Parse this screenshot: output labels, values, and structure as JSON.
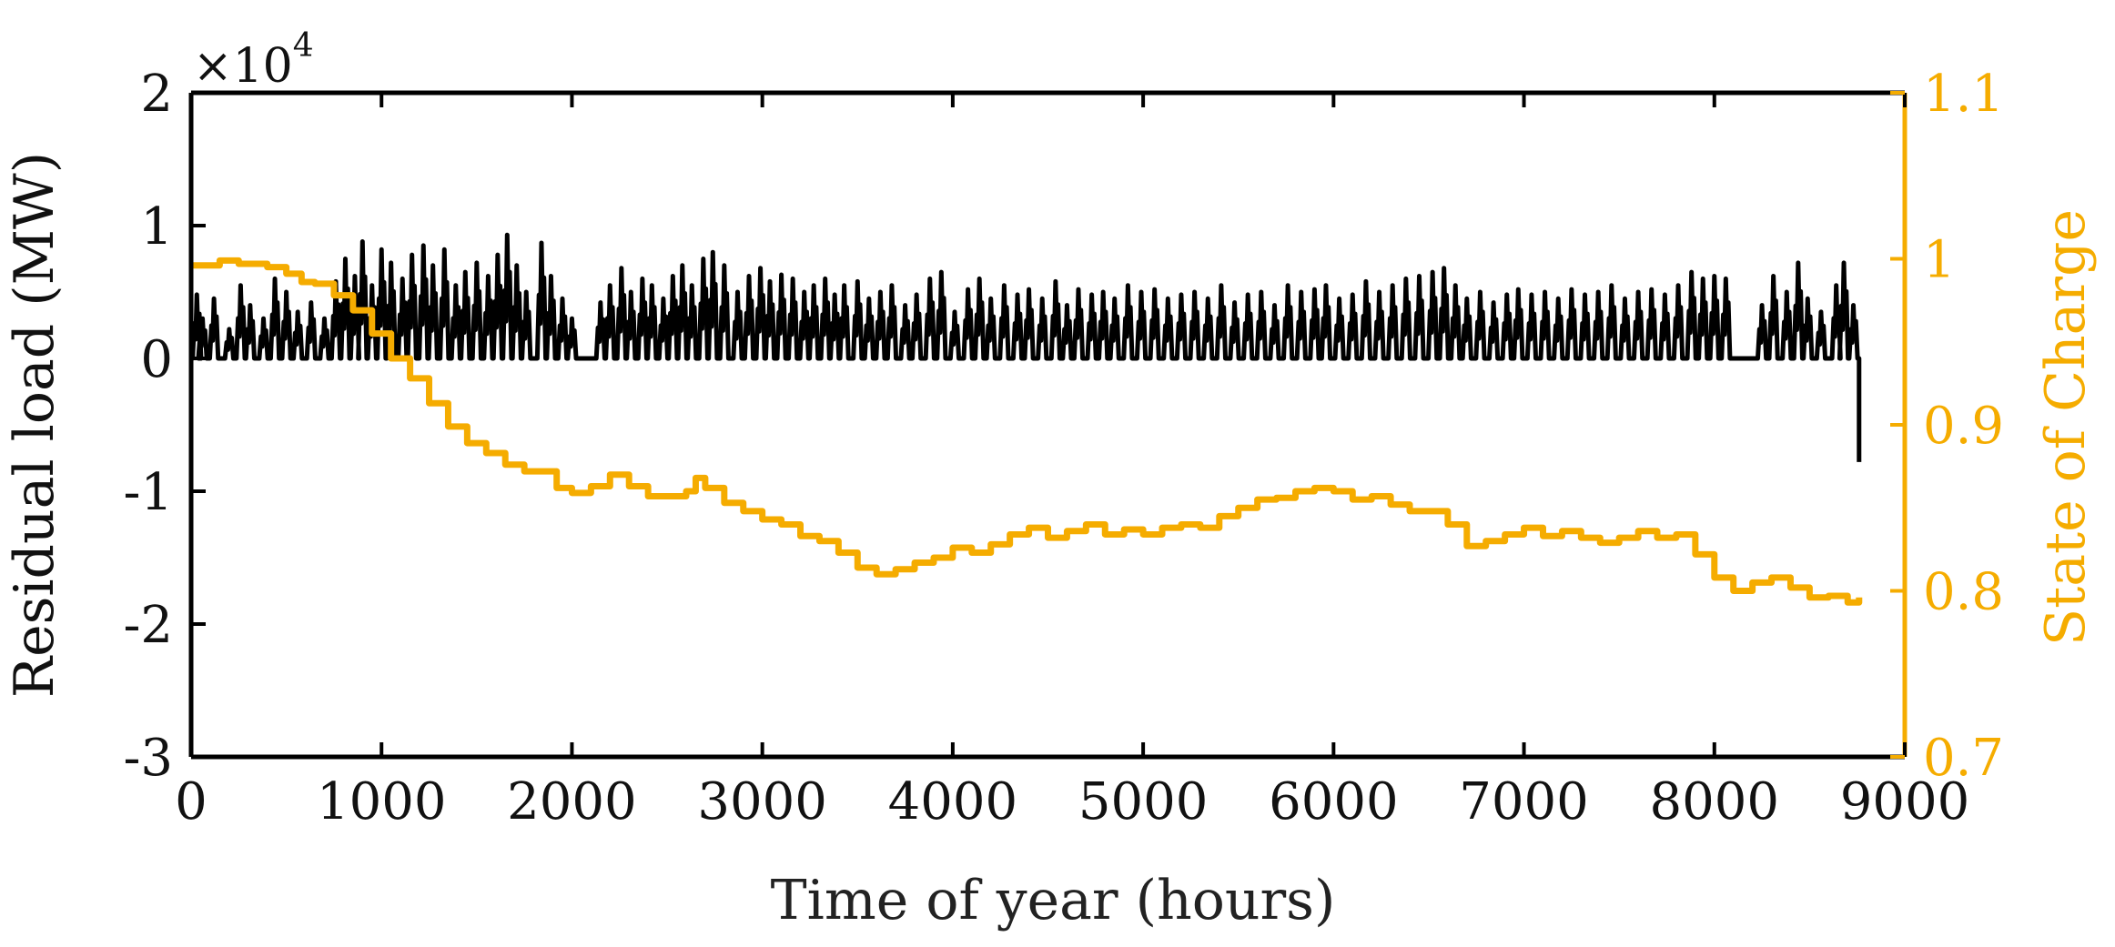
{
  "chart_data": {
    "type": "line",
    "title": "",
    "xlabel": "Time of year (hours)",
    "ylabel_left": "Residual load (MW)",
    "ylabel_right": "State of Charge",
    "left_axis_multiplier": {
      "base": "×10",
      "exponent": "4"
    },
    "xlim": [
      0,
      9000
    ],
    "ylim_left": [
      -3,
      2
    ],
    "ylim_right": [
      0.7,
      1.1
    ],
    "x_ticks": [
      "0",
      "1000",
      "2000",
      "3000",
      "4000",
      "5000",
      "6000",
      "7000",
      "8000",
      "9000"
    ],
    "y_left_ticks": [
      "2",
      "1",
      "0",
      "-1",
      "-2",
      "-3"
    ],
    "y_right_ticks": [
      "1.1",
      "1",
      "0.9",
      "0.8",
      "0.7"
    ],
    "grid": false,
    "colors": {
      "residual_load": "#000000",
      "state_of_charge": "#f5ac00",
      "axis_left": "#000000",
      "axis_right": "#f5ac00"
    },
    "series": [
      {
        "name": "Residual load",
        "axis": "left",
        "units": "x10^4 MW",
        "baseline": 0,
        "x_end": 8760,
        "final_value": -0.78,
        "peaks": [
          [
            30,
            0.48
          ],
          [
            60,
            0.3
          ],
          [
            120,
            0.45
          ],
          [
            200,
            0.22
          ],
          [
            260,
            0.55
          ],
          [
            310,
            0.4
          ],
          [
            380,
            0.3
          ],
          [
            440,
            0.6
          ],
          [
            500,
            0.5
          ],
          [
            560,
            0.35
          ],
          [
            630,
            0.42
          ],
          [
            700,
            0.3
          ],
          [
            760,
            0.58
          ],
          [
            810,
            0.75
          ],
          [
            860,
            0.62
          ],
          [
            900,
            0.88
          ],
          [
            950,
            0.55
          ],
          [
            1000,
            0.82
          ],
          [
            1050,
            0.72
          ],
          [
            1110,
            0.6
          ],
          [
            1160,
            0.78
          ],
          [
            1220,
            0.85
          ],
          [
            1270,
            0.7
          ],
          [
            1330,
            0.82
          ],
          [
            1390,
            0.55
          ],
          [
            1440,
            0.65
          ],
          [
            1500,
            0.72
          ],
          [
            1560,
            0.62
          ],
          [
            1610,
            0.78
          ],
          [
            1660,
            0.93
          ],
          [
            1710,
            0.7
          ],
          [
            1760,
            0.5
          ],
          [
            1840,
            0.87
          ],
          [
            1890,
            0.62
          ],
          [
            1950,
            0.45
          ],
          [
            2000,
            0.3
          ],
          [
            2150,
            0.42
          ],
          [
            2200,
            0.55
          ],
          [
            2260,
            0.68
          ],
          [
            2310,
            0.5
          ],
          [
            2370,
            0.6
          ],
          [
            2420,
            0.55
          ],
          [
            2480,
            0.45
          ],
          [
            2530,
            0.62
          ],
          [
            2580,
            0.7
          ],
          [
            2630,
            0.55
          ],
          [
            2690,
            0.75
          ],
          [
            2740,
            0.8
          ],
          [
            2800,
            0.7
          ],
          [
            2870,
            0.5
          ],
          [
            2930,
            0.62
          ],
          [
            2990,
            0.68
          ],
          [
            3040,
            0.58
          ],
          [
            3100,
            0.63
          ],
          [
            3160,
            0.6
          ],
          [
            3220,
            0.5
          ],
          [
            3270,
            0.55
          ],
          [
            3330,
            0.6
          ],
          [
            3380,
            0.48
          ],
          [
            3430,
            0.55
          ],
          [
            3500,
            0.58
          ],
          [
            3560,
            0.45
          ],
          [
            3620,
            0.5
          ],
          [
            3680,
            0.55
          ],
          [
            3750,
            0.4
          ],
          [
            3810,
            0.48
          ],
          [
            3880,
            0.6
          ],
          [
            3940,
            0.65
          ],
          [
            4010,
            0.35
          ],
          [
            4080,
            0.52
          ],
          [
            4140,
            0.6
          ],
          [
            4200,
            0.45
          ],
          [
            4270,
            0.55
          ],
          [
            4340,
            0.48
          ],
          [
            4400,
            0.52
          ],
          [
            4470,
            0.45
          ],
          [
            4540,
            0.58
          ],
          [
            4600,
            0.4
          ],
          [
            4660,
            0.52
          ],
          [
            4730,
            0.48
          ],
          [
            4790,
            0.5
          ],
          [
            4850,
            0.45
          ],
          [
            4920,
            0.55
          ],
          [
            4990,
            0.5
          ],
          [
            5060,
            0.52
          ],
          [
            5130,
            0.45
          ],
          [
            5200,
            0.48
          ],
          [
            5270,
            0.5
          ],
          [
            5340,
            0.45
          ],
          [
            5410,
            0.55
          ],
          [
            5480,
            0.42
          ],
          [
            5550,
            0.48
          ],
          [
            5620,
            0.5
          ],
          [
            5690,
            0.4
          ],
          [
            5760,
            0.55
          ],
          [
            5830,
            0.5
          ],
          [
            5900,
            0.52
          ],
          [
            5960,
            0.55
          ],
          [
            6030,
            0.45
          ],
          [
            6100,
            0.48
          ],
          [
            6170,
            0.58
          ],
          [
            6240,
            0.5
          ],
          [
            6310,
            0.55
          ],
          [
            6380,
            0.6
          ],
          [
            6450,
            0.62
          ],
          [
            6520,
            0.65
          ],
          [
            6580,
            0.68
          ],
          [
            6640,
            0.55
          ],
          [
            6700,
            0.45
          ],
          [
            6770,
            0.5
          ],
          [
            6840,
            0.42
          ],
          [
            6910,
            0.48
          ],
          [
            6970,
            0.52
          ],
          [
            7040,
            0.48
          ],
          [
            7110,
            0.5
          ],
          [
            7180,
            0.45
          ],
          [
            7250,
            0.52
          ],
          [
            7320,
            0.48
          ],
          [
            7390,
            0.5
          ],
          [
            7460,
            0.55
          ],
          [
            7530,
            0.45
          ],
          [
            7600,
            0.5
          ],
          [
            7670,
            0.52
          ],
          [
            7740,
            0.48
          ],
          [
            7810,
            0.55
          ],
          [
            7880,
            0.65
          ],
          [
            7940,
            0.6
          ],
          [
            8000,
            0.62
          ],
          [
            8060,
            0.6
          ],
          [
            8250,
            0.4
          ],
          [
            8310,
            0.62
          ],
          [
            8380,
            0.5
          ],
          [
            8440,
            0.72
          ],
          [
            8490,
            0.45
          ],
          [
            8560,
            0.35
          ],
          [
            8640,
            0.55
          ],
          [
            8680,
            0.72
          ],
          [
            8730,
            0.4
          ]
        ]
      },
      {
        "name": "State of Charge",
        "axis": "right",
        "points": [
          [
            0,
            0.996
          ],
          [
            150,
            0.999
          ],
          [
            250,
            0.997
          ],
          [
            400,
            0.995
          ],
          [
            500,
            0.991
          ],
          [
            580,
            0.986
          ],
          [
            650,
            0.985
          ],
          [
            750,
            0.978
          ],
          [
            850,
            0.969
          ],
          [
            950,
            0.955
          ],
          [
            1050,
            0.94
          ],
          [
            1150,
            0.928
          ],
          [
            1250,
            0.913
          ],
          [
            1350,
            0.899
          ],
          [
            1450,
            0.889
          ],
          [
            1550,
            0.883
          ],
          [
            1650,
            0.876
          ],
          [
            1750,
            0.872
          ],
          [
            1850,
            0.872
          ],
          [
            1920,
            0.862
          ],
          [
            2000,
            0.859
          ],
          [
            2100,
            0.863
          ],
          [
            2200,
            0.87
          ],
          [
            2300,
            0.863
          ],
          [
            2400,
            0.857
          ],
          [
            2500,
            0.857
          ],
          [
            2600,
            0.86
          ],
          [
            2650,
            0.868
          ],
          [
            2700,
            0.862
          ],
          [
            2800,
            0.853
          ],
          [
            2900,
            0.848
          ],
          [
            3000,
            0.843
          ],
          [
            3100,
            0.84
          ],
          [
            3200,
            0.833
          ],
          [
            3300,
            0.83
          ],
          [
            3400,
            0.823
          ],
          [
            3500,
            0.814
          ],
          [
            3600,
            0.81
          ],
          [
            3700,
            0.813
          ],
          [
            3800,
            0.817
          ],
          [
            3900,
            0.82
          ],
          [
            4000,
            0.826
          ],
          [
            4100,
            0.823
          ],
          [
            4200,
            0.828
          ],
          [
            4300,
            0.834
          ],
          [
            4400,
            0.838
          ],
          [
            4500,
            0.832
          ],
          [
            4600,
            0.836
          ],
          [
            4700,
            0.84
          ],
          [
            4800,
            0.834
          ],
          [
            4900,
            0.837
          ],
          [
            5000,
            0.834
          ],
          [
            5100,
            0.838
          ],
          [
            5200,
            0.84
          ],
          [
            5300,
            0.838
          ],
          [
            5400,
            0.845
          ],
          [
            5500,
            0.85
          ],
          [
            5600,
            0.855
          ],
          [
            5700,
            0.856
          ],
          [
            5800,
            0.86
          ],
          [
            5900,
            0.862
          ],
          [
            6000,
            0.86
          ],
          [
            6100,
            0.855
          ],
          [
            6200,
            0.857
          ],
          [
            6300,
            0.852
          ],
          [
            6400,
            0.848
          ],
          [
            6500,
            0.848
          ],
          [
            6600,
            0.84
          ],
          [
            6700,
            0.827
          ],
          [
            6800,
            0.83
          ],
          [
            6900,
            0.834
          ],
          [
            7000,
            0.838
          ],
          [
            7100,
            0.833
          ],
          [
            7200,
            0.836
          ],
          [
            7300,
            0.832
          ],
          [
            7400,
            0.829
          ],
          [
            7500,
            0.832
          ],
          [
            7600,
            0.836
          ],
          [
            7700,
            0.832
          ],
          [
            7800,
            0.834
          ],
          [
            7900,
            0.822
          ],
          [
            8000,
            0.808
          ],
          [
            8100,
            0.8
          ],
          [
            8200,
            0.805
          ],
          [
            8300,
            0.808
          ],
          [
            8400,
            0.802
          ],
          [
            8500,
            0.796
          ],
          [
            8600,
            0.797
          ],
          [
            8700,
            0.793
          ],
          [
            8760,
            0.796
          ]
        ]
      }
    ]
  }
}
